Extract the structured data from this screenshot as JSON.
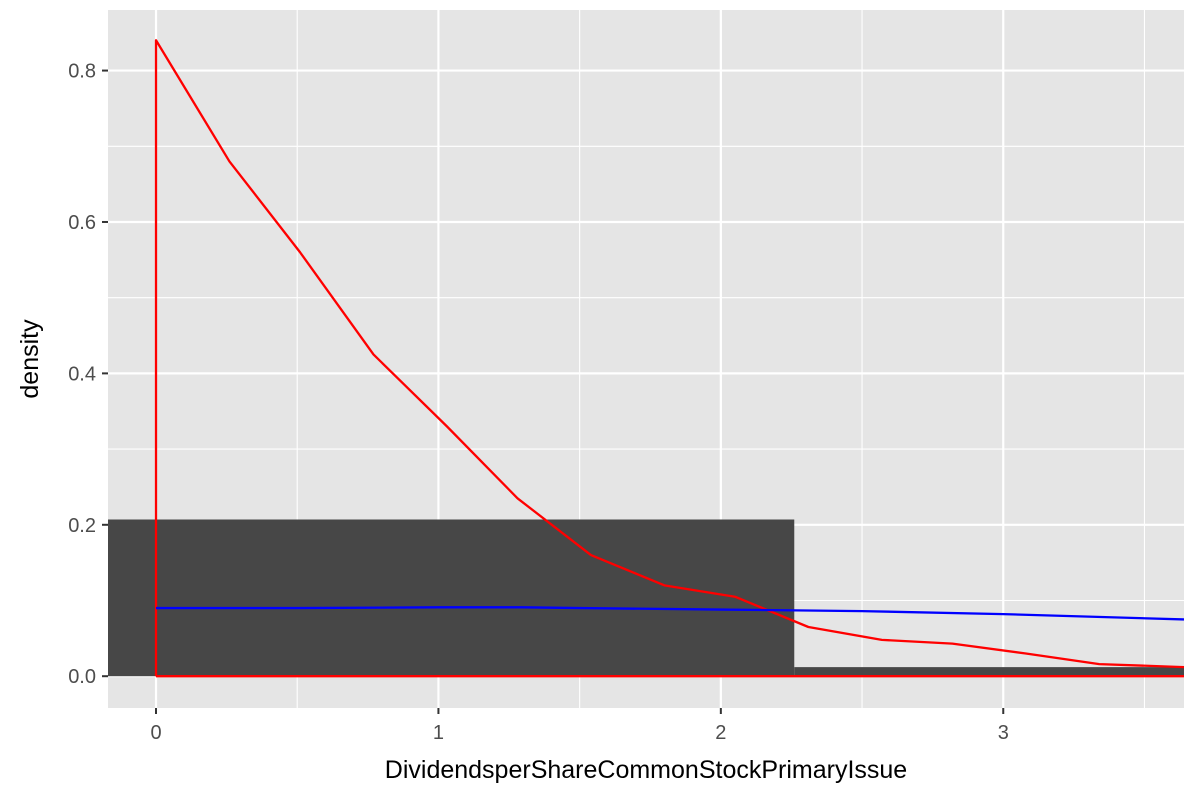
{
  "chart_data": {
    "type": "histogram",
    "xlabel": "DividendsperShareCommonStockPrimaryIssue",
    "ylabel": "density",
    "xlim": [
      -0.17,
      3.64
    ],
    "ylim": [
      -0.042,
      0.88
    ],
    "x_ticks": [
      0,
      1,
      2,
      3
    ],
    "y_ticks": [
      0.0,
      0.2,
      0.4,
      0.6,
      0.8
    ],
    "x_tick_labels": [
      "0",
      "1",
      "2",
      "3"
    ],
    "y_tick_labels": [
      "0.0",
      "0.2",
      "0.4",
      "0.6",
      "0.8"
    ],
    "grid": true,
    "legend": "none",
    "histogram": {
      "fill": "#474747",
      "bins": [
        {
          "x0": -0.17,
          "x1": 2.26,
          "density": 0.207
        },
        {
          "x0": 2.26,
          "x1": 3.64,
          "density": 0.012
        }
      ]
    },
    "series": [
      {
        "color": "#ff0000",
        "x": [
          0.0,
          0.0,
          0.26,
          0.51,
          0.77,
          1.03,
          1.28,
          1.54,
          1.8,
          2.05,
          2.31,
          2.57,
          2.82,
          3.08,
          3.34,
          3.64
        ],
        "y": [
          0.0,
          0.84,
          0.68,
          0.56,
          0.425,
          0.33,
          0.235,
          0.16,
          0.12,
          0.105,
          0.065,
          0.048,
          0.043,
          0.03,
          0.016,
          0.012
        ]
      },
      {
        "color": "#ff0000",
        "x": [
          0.0,
          3.64
        ],
        "y": [
          0.0,
          0.0
        ]
      },
      {
        "color": "#0000ff",
        "x": [
          0.0,
          0.5,
          1.0,
          1.3,
          1.5,
          2.0,
          2.5,
          3.0,
          3.64
        ],
        "y": [
          0.09,
          0.09,
          0.091,
          0.091,
          0.09,
          0.088,
          0.086,
          0.082,
          0.075
        ]
      }
    ],
    "colors": {
      "panel_background": "#e5e5e5",
      "grid": "#ffffff",
      "page_background": "#ffffff"
    }
  }
}
